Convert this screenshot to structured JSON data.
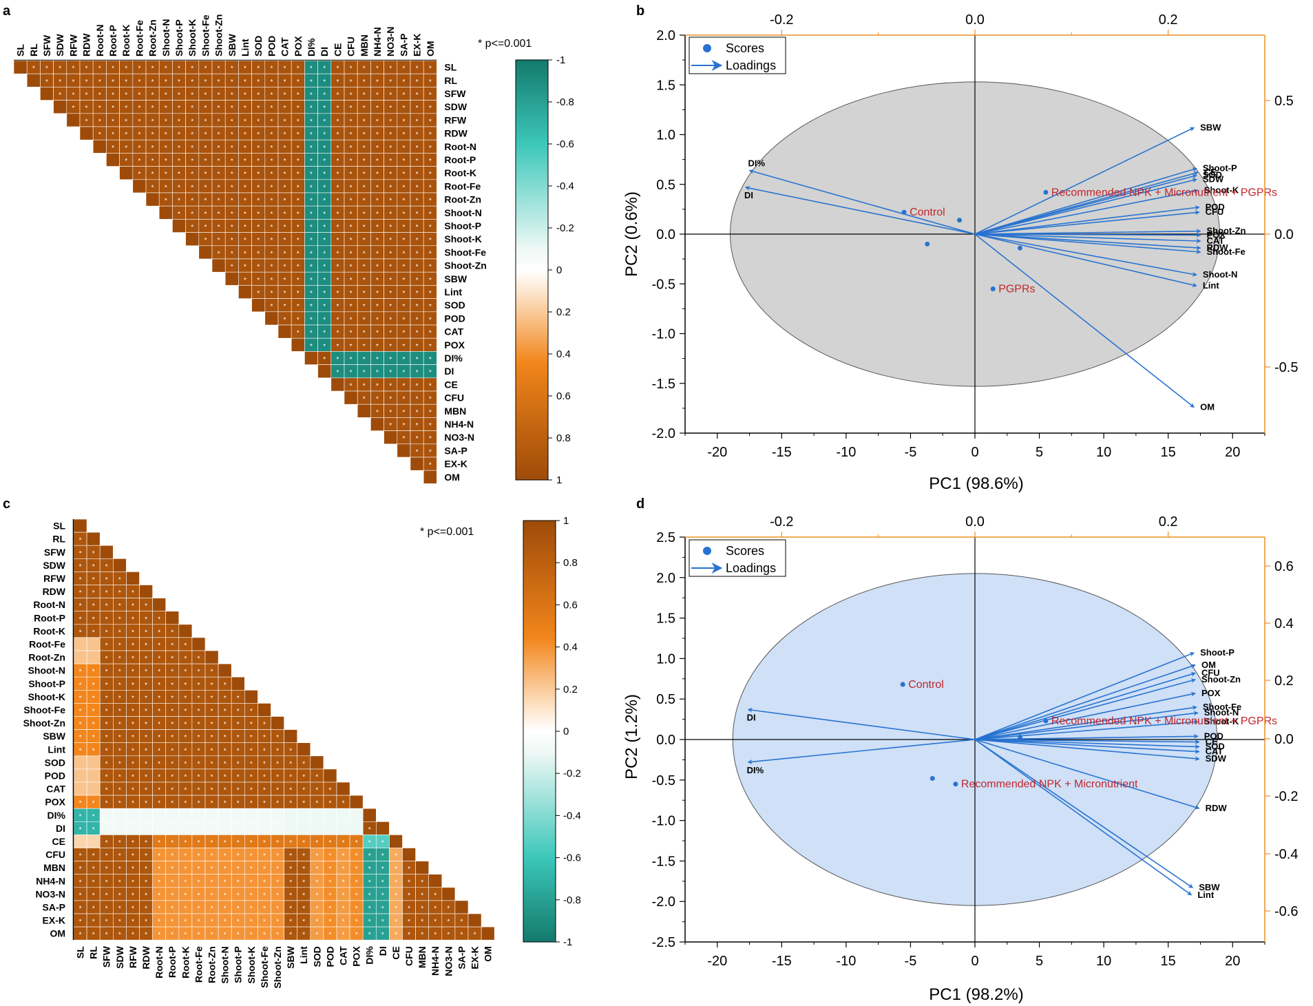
{
  "vars": [
    "SL",
    "RL",
    "SFW",
    "SDW",
    "RFW",
    "RDW",
    "Root-N",
    "Root-P",
    "Root-K",
    "Root-Fe",
    "Root-Zn",
    "Shoot-N",
    "Shoot-P",
    "Shoot-K",
    "Shoot-Fe",
    "Shoot-Zn",
    "SBW",
    "Lint",
    "SOD",
    "POD",
    "CAT",
    "POX",
    "DI%",
    "DI",
    "CE",
    "CFU",
    "MBN",
    "NH4-N",
    "NO3-N",
    "SA-P",
    "EX-K",
    "OM"
  ],
  "colors": {
    "orange": "#a04e0a",
    "teal": "#137a6c",
    "accent": "#e89020",
    "arrow": "#2873d0",
    "label_red": "#c0262c",
    "ellipse_b": "#d3d3d3",
    "ellipse_d": "#cfe0f7"
  },
  "chart_data": [
    {
      "panel": "a",
      "type": "heatmap",
      "layout": "upper-triangle",
      "significance_note": "* p<=0.001",
      "colorbar": {
        "ticks": [
          "-1",
          "-0.8",
          "-0.6",
          "-0.4",
          "-0.2",
          "0",
          "0.2",
          "0.4",
          "0.6",
          "0.8",
          "1"
        ],
        "range": [
          1,
          -1
        ],
        "orientation": "top-to-bottom"
      },
      "cell_rule": "r = 0.96 among all pairs; r = -0.95 for pairs involving exactly one of DI%, DI; r = 0.99 for DI%-DI; significant (*) on all off-diagonal cells"
    },
    {
      "panel": "b",
      "type": "scatter",
      "subtype": "PCA biplot",
      "xlabel": "PC1 (98.6%)",
      "ylabel": "PC2 (0.6%)",
      "xlim": [
        -22.5,
        22.5
      ],
      "ylim": [
        -2.0,
        2.0
      ],
      "x_ticks": [
        -20,
        -15,
        -10,
        -5,
        0,
        5,
        10,
        15,
        20
      ],
      "y_ticks": [
        -2.0,
        -1.5,
        -1.0,
        -0.5,
        0.0,
        0.5,
        1.0,
        1.5,
        2.0
      ],
      "top_ticks": [
        "-0.2",
        "0.0",
        "0.2"
      ],
      "right_ticks": [
        "0.5",
        "0.0",
        "-0.5"
      ],
      "legend": [
        "Scores",
        "Loadings"
      ],
      "ellipse": {
        "cx": 0,
        "cy": 0,
        "rx": 19.0,
        "ry": 1.53
      },
      "scores": [
        {
          "label": "Control",
          "x": -5.5,
          "y": 0.22
        },
        {
          "label": "",
          "x": -1.2,
          "y": 0.14
        },
        {
          "label": "",
          "x": -3.7,
          "y": -0.1
        },
        {
          "label": "Recommended NPK + Micronutrient + PGPRs",
          "x": 5.5,
          "y": 0.42
        },
        {
          "label": "",
          "x": 3.5,
          "y": -0.14
        },
        {
          "label": "PGPRs",
          "x": 1.4,
          "y": -0.55
        }
      ],
      "loadings": [
        {
          "label": "SBW",
          "x": 17.0,
          "y": 1.07
        },
        {
          "label": "Shoot-P",
          "x": 17.2,
          "y": 0.66
        },
        {
          "label": "CE",
          "x": 17.3,
          "y": 0.62
        },
        {
          "label": "SOD",
          "x": 17.2,
          "y": 0.59
        },
        {
          "label": "SDW",
          "x": 17.2,
          "y": 0.55
        },
        {
          "label": "Shoot-K",
          "x": 17.3,
          "y": 0.44
        },
        {
          "label": "POD",
          "x": 17.4,
          "y": 0.27
        },
        {
          "label": "CFU",
          "x": 17.4,
          "y": 0.22
        },
        {
          "label": "Shoot-Zn",
          "x": 17.5,
          "y": 0.03
        },
        {
          "label": "POX",
          "x": 17.5,
          "y": -0.01
        },
        {
          "label": "CAT",
          "x": 17.5,
          "y": -0.07
        },
        {
          "label": "RDW",
          "x": 17.5,
          "y": -0.14
        },
        {
          "label": "Shoot-Fe",
          "x": 17.5,
          "y": -0.18
        },
        {
          "label": "Shoot-N",
          "x": 17.2,
          "y": -0.41
        },
        {
          "label": "Lint",
          "x": 17.2,
          "y": -0.52
        },
        {
          "label": "OM",
          "x": 17.0,
          "y": -1.74
        },
        {
          "label": "DI%",
          "x": -17.5,
          "y": 0.64
        },
        {
          "label": "DI",
          "x": -17.8,
          "y": 0.47
        }
      ]
    },
    {
      "panel": "c",
      "type": "heatmap",
      "layout": "lower-triangle",
      "significance_note": "* p<=0.001",
      "colorbar": {
        "ticks": [
          "1",
          "0.8",
          "0.6",
          "0.4",
          "0.2",
          "0",
          "-0.2",
          "-0.4",
          "-0.6",
          "-0.8",
          "-1"
        ],
        "range": [
          1,
          -1
        ],
        "orientation": "top-to-bottom"
      },
      "cell_rule": "r = 0.95 by default; SL/RL columns ~0.55-0.8 with Root-Fe..POX rows; Root-N..Shoot-Zn and POD/CAT/POX columns ~0.6-0.75 with CFU..OM rows; r = -0.3 to -0.95 for pairs involving DI% or DI"
    },
    {
      "panel": "d",
      "type": "scatter",
      "subtype": "PCA biplot",
      "xlabel": "PC1 (98.2%)",
      "ylabel": "PC2 (1.2%)",
      "xlim": [
        -22.5,
        22.5
      ],
      "ylim": [
        -2.5,
        2.5
      ],
      "x_ticks": [
        -20,
        -15,
        -10,
        -5,
        0,
        5,
        10,
        15,
        20
      ],
      "y_ticks": [
        -2.5,
        -2.0,
        -1.5,
        -1.0,
        -0.5,
        0.0,
        0.5,
        1.0,
        1.5,
        2.0,
        2.5
      ],
      "top_ticks": [
        "-0.2",
        "0.0",
        "0.2"
      ],
      "right_ticks": [
        "0.6",
        "0.4",
        "0.2",
        "0.0",
        "-0.2",
        "-0.4",
        "-0.6"
      ],
      "legend": [
        "Scores",
        "Loadings"
      ],
      "ellipse": {
        "cx": 0,
        "cy": 0,
        "rx": 18.8,
        "ry": 2.05
      },
      "scores": [
        {
          "label": "Control",
          "x": -5.6,
          "y": 0.68
        },
        {
          "label": "Recommended NPK + Micronutrient",
          "x": -1.5,
          "y": -0.55
        },
        {
          "label": "",
          "x": -3.3,
          "y": -0.48
        },
        {
          "label": "Recommended NPK + Micronutrient + PGPRs",
          "x": 5.5,
          "y": 0.23
        },
        {
          "label": "",
          "x": 3.5,
          "y": 0.03
        }
      ],
      "loadings": [
        {
          "label": "Shoot-P",
          "x": 17.0,
          "y": 1.07
        },
        {
          "label": "OM",
          "x": 17.1,
          "y": 0.92
        },
        {
          "label": "CFU",
          "x": 17.1,
          "y": 0.82
        },
        {
          "label": "Shoot-Zn",
          "x": 17.1,
          "y": 0.74
        },
        {
          "label": "POX",
          "x": 17.1,
          "y": 0.57
        },
        {
          "label": "Shoot-Fe",
          "x": 17.2,
          "y": 0.4
        },
        {
          "label": "Shoot-N",
          "x": 17.3,
          "y": 0.33
        },
        {
          "label": "Shoot-K",
          "x": 17.3,
          "y": 0.22
        },
        {
          "label": "POD",
          "x": 17.3,
          "y": 0.04
        },
        {
          "label": "CE",
          "x": 17.4,
          "y": -0.03
        },
        {
          "label": "SOD",
          "x": 17.4,
          "y": -0.09
        },
        {
          "label": "CAT",
          "x": 17.4,
          "y": -0.15
        },
        {
          "label": "SDW",
          "x": 17.4,
          "y": -0.24
        },
        {
          "label": "RDW",
          "x": 17.4,
          "y": -0.85
        },
        {
          "label": "SBW",
          "x": 16.9,
          "y": -1.83
        },
        {
          "label": "Lint",
          "x": 16.8,
          "y": -1.92
        },
        {
          "label": "DI",
          "x": -17.6,
          "y": 0.37
        },
        {
          "label": "DI%",
          "x": -17.6,
          "y": -0.28
        }
      ]
    }
  ]
}
